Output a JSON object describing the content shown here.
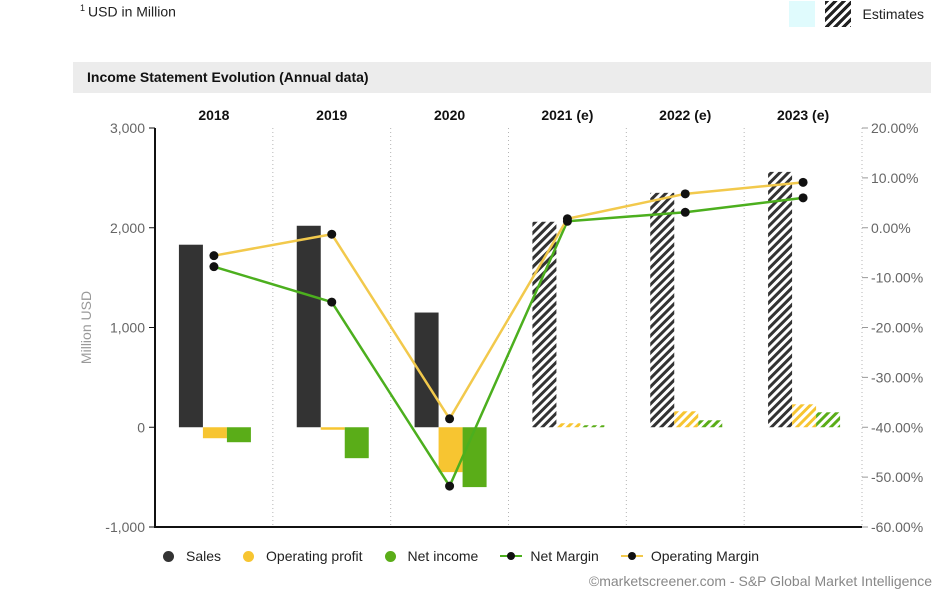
{
  "footnote": {
    "sup": "1",
    "text": "USD in Million"
  },
  "legend_top": {
    "estimates_label": "Estimates"
  },
  "panel": {
    "title": "Income Statement Evolution (Annual data)"
  },
  "source": "©marketscreener.com - S&P Global Market Intelligence",
  "colors": {
    "sales": "#333333",
    "operating_profit": "#f7c531",
    "net_income": "#5aad18",
    "net_margin": "#4caf1e",
    "operating_margin": "#f2c94c"
  },
  "chart_data": {
    "type": "bar",
    "title": "Income Statement Evolution (Annual data)",
    "categories": [
      "2018",
      "2019",
      "2020",
      "2021 (e)",
      "2022 (e)",
      "2023 (e)"
    ],
    "estimated": [
      false,
      false,
      false,
      true,
      true,
      true
    ],
    "ylabel": "Million USD",
    "ylim": [
      -1000,
      3000
    ],
    "y_ticks": [
      "3,000",
      "2,000",
      "1,000",
      "0",
      "-1,000"
    ],
    "y2lim": [
      -60,
      20
    ],
    "y2_ticks": [
      "20.00%",
      "10.00%",
      "0.00%",
      "-10.00%",
      "-20.00%",
      "-30.00%",
      "-40.00%",
      "-50.00%",
      "-60.00%"
    ],
    "series": [
      {
        "name": "Sales",
        "type": "bar",
        "axis": "left",
        "values": [
          1830,
          2020,
          1150,
          2060,
          2350,
          2560
        ]
      },
      {
        "name": "Operating profit",
        "type": "bar",
        "axis": "left",
        "values": [
          -110,
          -25,
          -450,
          40,
          160,
          230
        ]
      },
      {
        "name": "Net income",
        "type": "bar",
        "axis": "left",
        "values": [
          -150,
          -310,
          -600,
          20,
          70,
          150
        ]
      },
      {
        "name": "Net Margin",
        "type": "line",
        "axis": "right",
        "values": [
          -7.8,
          -14.9,
          -51.8,
          1.3,
          3.1,
          6.0
        ]
      },
      {
        "name": "Operating Margin",
        "type": "line",
        "axis": "right",
        "values": [
          -5.6,
          -1.3,
          -38.3,
          1.8,
          6.8,
          9.1
        ]
      }
    ],
    "legend_position": "bottom",
    "grid": "vertical-dotted"
  }
}
